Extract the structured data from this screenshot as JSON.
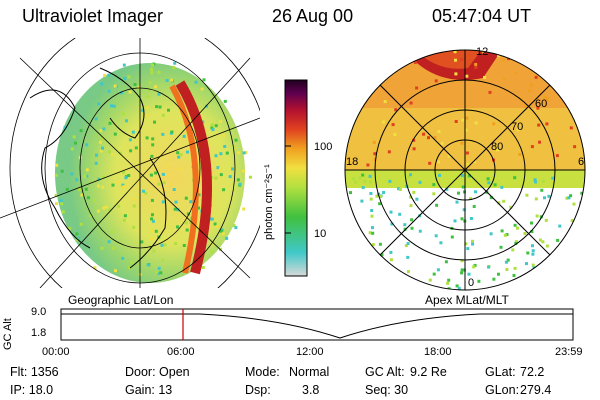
{
  "header": {
    "instrument": "Ultraviolet Imager",
    "date": "26 Aug 00",
    "time": "05:47:04 UT"
  },
  "left_panel": {
    "label": "Geographic Lat/Lon"
  },
  "right_panel": {
    "label": "Apex MLat/MLT",
    "lat_labels": [
      "60",
      "70",
      "80"
    ],
    "mlt_labels": {
      "top": "12",
      "left": "18",
      "right": "6",
      "bottom": "0"
    }
  },
  "colorbar": {
    "unit_label": "photon cm⁻²s⁻¹",
    "ticks": [
      "100",
      "10"
    ],
    "scale": "log",
    "colors": [
      "#d8d8d8",
      "#40c8c8",
      "#40c040",
      "#b0e040",
      "#f0e040",
      "#f0a020",
      "#e04020",
      "#b01030",
      "#600050",
      "#200020"
    ]
  },
  "timeline": {
    "ylabel": "GC Alt",
    "yticks": [
      "9.0",
      "1.8"
    ],
    "xticks": [
      "00:00",
      "06:00",
      "12:00",
      "18:00",
      "23:59"
    ],
    "marker_time": "05:47",
    "marker_color": "#cc0000"
  },
  "info": {
    "flt": "Flt: 1356",
    "door": "Door: Open",
    "mode_label": "Mode:",
    "mode_value": "Normal",
    "gc_alt_label": "GC Alt:",
    "gc_alt_value": "9.2 Re",
    "glat_label": "GLat:",
    "glat_value": "72.2",
    "ip": "IP: 18.0",
    "gain": "Gain: 13",
    "dsp_label": "Dsp:",
    "dsp_value": "3.8",
    "seq": "Seq: 30",
    "glon_label": "GLon:",
    "glon_value": "279.4"
  }
}
